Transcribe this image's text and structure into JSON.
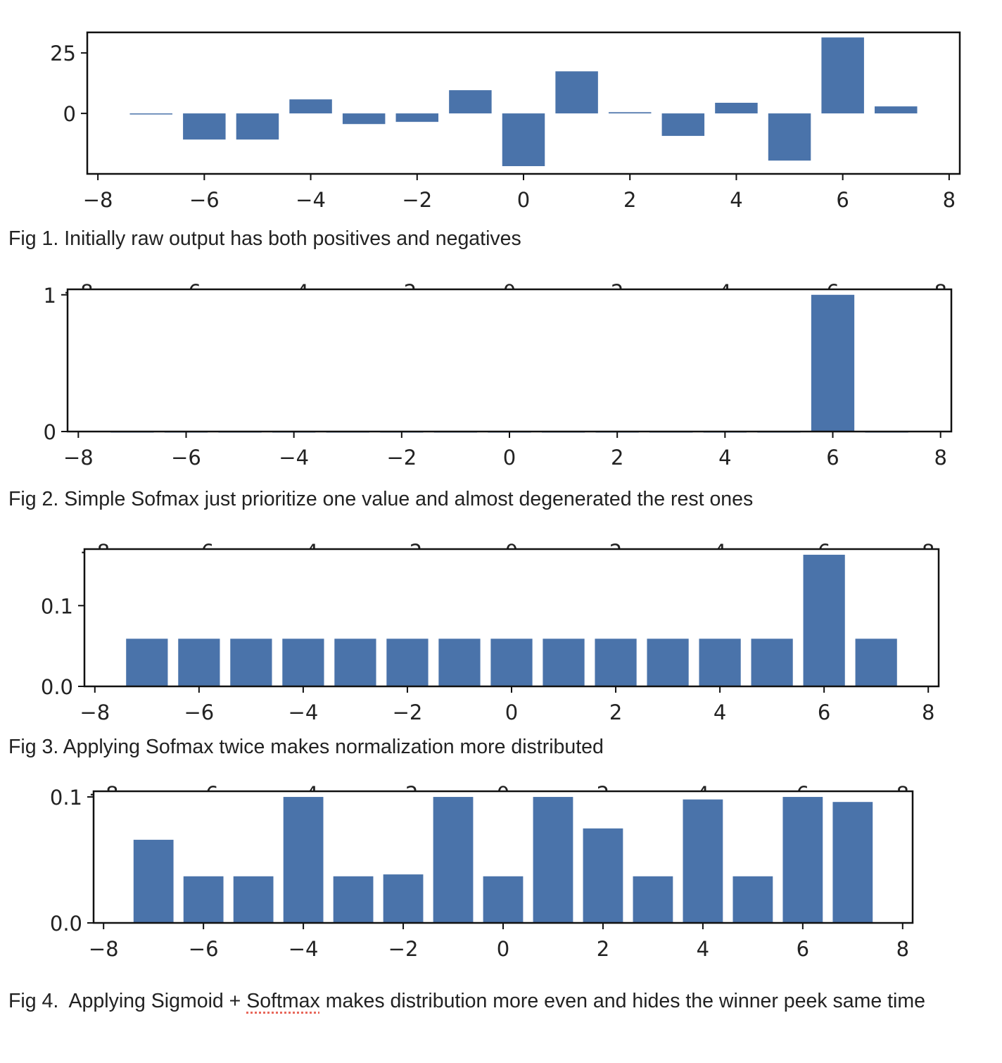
{
  "bar_color": "#4a73aa",
  "captions": {
    "fig1": "Fig 1. Initially raw output has both positives and negatives",
    "fig2": "Fig 2. Simple Sofmax just prioritize one value and almost degenerated the rest ones",
    "fig3": "Fig 3. Applying Sofmax twice makes normalization more distributed",
    "fig4_a": "Fig 4.  Applying Sigmoid + ",
    "fig4_b": "Softmax",
    "fig4_c": " makes distribution more even and hides the winner peek same time"
  },
  "chart_data": [
    {
      "type": "bar",
      "x": [
        -7,
        -6,
        -5,
        -4,
        -3,
        -2,
        -1,
        0,
        1,
        2,
        3,
        4,
        5,
        6,
        7
      ],
      "values": [
        0,
        -10.8,
        -10.8,
        5.8,
        -4.4,
        -3.5,
        9.6,
        -21.8,
        17.4,
        0.5,
        -9.3,
        4.4,
        -19.5,
        31.4,
        2.9
      ],
      "xlim": [
        -8.2,
        8.2
      ],
      "ylim": [
        -25,
        33.5
      ],
      "xticks": [
        -8,
        -6,
        -4,
        -2,
        0,
        2,
        4,
        6,
        8
      ],
      "yticks": [
        0,
        25
      ],
      "ytick_labels": [
        "0",
        "25"
      ],
      "title": "",
      "xlabel": "",
      "ylabel": "",
      "grid": false
    },
    {
      "type": "bar",
      "x": [
        -7,
        -6,
        -5,
        -4,
        -3,
        -2,
        -1,
        0,
        1,
        2,
        3,
        4,
        5,
        6,
        7
      ],
      "values": [
        0,
        0,
        0,
        0,
        0,
        0,
        0,
        0,
        0,
        0,
        0,
        0,
        0,
        1.0,
        0
      ],
      "xlim": [
        -8.2,
        8.2
      ],
      "ylim": [
        0,
        1.04
      ],
      "xticks": [
        -8,
        -6,
        -4,
        -2,
        0,
        2,
        4,
        6,
        8
      ],
      "yticks": [
        0,
        1
      ],
      "ytick_labels": [
        "0",
        "1"
      ],
      "title": "",
      "xlabel": "",
      "ylabel": "",
      "grid": false
    },
    {
      "type": "bar",
      "x": [
        -7,
        -6,
        -5,
        -4,
        -3,
        -2,
        -1,
        0,
        1,
        2,
        3,
        4,
        5,
        6,
        7
      ],
      "values": [
        0.059,
        0.059,
        0.059,
        0.059,
        0.059,
        0.059,
        0.059,
        0.059,
        0.059,
        0.059,
        0.059,
        0.059,
        0.059,
        0.163,
        0.059
      ],
      "xlim": [
        -8.2,
        8.2
      ],
      "ylim": [
        0,
        0.17
      ],
      "xticks": [
        -8,
        -6,
        -4,
        -2,
        0,
        2,
        4,
        6,
        8
      ],
      "yticks": [
        0,
        0.1
      ],
      "ytick_labels": [
        "0.0",
        "0.1"
      ],
      "title": "",
      "xlabel": "",
      "ylabel": "",
      "grid": false
    },
    {
      "type": "bar",
      "x": [
        -7,
        -6,
        -5,
        -4,
        -3,
        -2,
        -1,
        0,
        1,
        2,
        3,
        4,
        5,
        6,
        7
      ],
      "values": [
        0.066,
        0.037,
        0.037,
        0.1,
        0.037,
        0.0385,
        0.1,
        0.037,
        0.1,
        0.075,
        0.037,
        0.098,
        0.037,
        0.1,
        0.096
      ],
      "xlim": [
        -8.2,
        8.2
      ],
      "ylim": [
        0,
        0.1045
      ],
      "xticks": [
        -8,
        -6,
        -4,
        -2,
        0,
        2,
        4,
        6,
        8
      ],
      "yticks": [
        0,
        0.1
      ],
      "ytick_labels": [
        "0.0",
        "0.1"
      ],
      "title": "",
      "xlabel": "",
      "ylabel": "",
      "grid": false
    }
  ]
}
